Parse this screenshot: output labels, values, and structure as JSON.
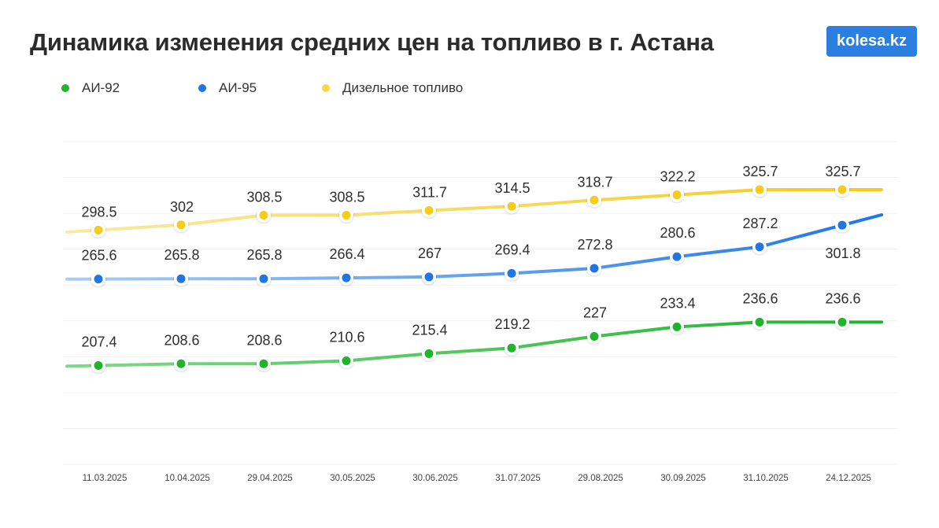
{
  "logo": "kolesa.kz",
  "chart_data": {
    "type": "line",
    "title": "Динамика изменения средних цен на топливо в г. Астана",
    "xlabel": "",
    "ylabel": "",
    "categories": [
      "11.03.2025",
      "10.04.2025",
      "29.04.2025",
      "30.05.2025",
      "30.06.2025",
      "31.07.2025",
      "29.08.2025",
      "30.09.2025",
      "31.10.2025",
      "24.12.2025"
    ],
    "ylim": [
      141,
      358
    ],
    "grid": true,
    "legend_position": "top-left",
    "series": [
      {
        "name": "АИ-92",
        "color": "#1fb42c",
        "light": "#7fd98a",
        "values": [
          207.4,
          208.6,
          208.6,
          210.6,
          215.4,
          219.2,
          227,
          233.4,
          236.6,
          236.6
        ]
      },
      {
        "name": "АИ-95",
        "color": "#1f77e6",
        "light": "#a9cdf5",
        "values": [
          265.6,
          265.8,
          265.8,
          266.4,
          267,
          269.4,
          272.8,
          280.6,
          287.2,
          301.8
        ]
      },
      {
        "name": "Дизельное топливо",
        "color": "#f5cb1c",
        "light": "#fbe9a3",
        "values": [
          298.5,
          302,
          308.5,
          308.5,
          311.7,
          314.5,
          318.7,
          322.2,
          325.7,
          325.7
        ]
      }
    ]
  }
}
